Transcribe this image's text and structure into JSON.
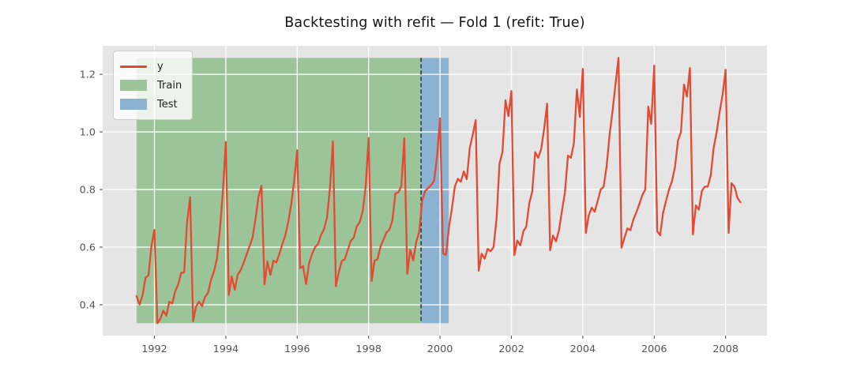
{
  "chart_data": {
    "type": "line",
    "title": "Backtesting with refit — Fold 1 (refit: True)",
    "xlabel": "",
    "ylabel": "",
    "grid": true,
    "plot_bg_color": "#E5E5E5",
    "grid_color": "#FFFFFF",
    "tick_label_color": "#555555",
    "xlim": [
      1990.551,
      2009.157
    ],
    "ylim": [
      0.293,
      1.299
    ],
    "x_ticks": [
      1992,
      1994,
      1996,
      1998,
      2000,
      2002,
      2004,
      2006,
      2008
    ],
    "y_ticks": [
      "0.4",
      "0.6",
      "0.8",
      "1.0",
      "1.2"
    ],
    "split_line": {
      "name": "train-test-split",
      "x": 1999.47,
      "color": "#333333",
      "style": "dashed"
    },
    "bands": [
      {
        "label": "Train",
        "x0": 1991.5,
        "x1": 1999.47,
        "y0": 0.336,
        "y1": 1.257,
        "color": "#9CC499"
      },
      {
        "label": "Test",
        "x0": 1999.47,
        "x1": 2000.245,
        "y0": 0.336,
        "y1": 1.257,
        "color": "#8CB2D1"
      }
    ],
    "legend": {
      "position": "upper left",
      "entries": [
        {
          "label": "y",
          "type": "line",
          "color": "#E24A33"
        },
        {
          "label": "Train",
          "type": "patch",
          "color": "#9CC499"
        },
        {
          "label": "Test",
          "type": "patch",
          "color": "#8CB2D1"
        }
      ]
    },
    "series": [
      {
        "name": "y",
        "color": "#E24A33",
        "line_width": 2.3,
        "freq": "monthly",
        "start_year": 1991,
        "start_month": 7,
        "values": [
          0.43,
          0.401,
          0.432,
          0.493,
          0.502,
          0.603,
          0.66,
          0.336,
          0.351,
          0.38,
          0.362,
          0.41,
          0.405,
          0.447,
          0.47,
          0.511,
          0.512,
          0.69,
          0.773,
          0.343,
          0.394,
          0.411,
          0.395,
          0.427,
          0.44,
          0.486,
          0.515,
          0.558,
          0.66,
          0.79,
          0.965,
          0.434,
          0.498,
          0.452,
          0.505,
          0.52,
          0.546,
          0.575,
          0.604,
          0.633,
          0.7,
          0.774,
          0.813,
          0.471,
          0.55,
          0.504,
          0.553,
          0.547,
          0.576,
          0.611,
          0.64,
          0.688,
          0.75,
          0.831,
          0.937,
          0.527,
          0.534,
          0.472,
          0.545,
          0.576,
          0.6,
          0.611,
          0.642,
          0.662,
          0.702,
          0.803,
          0.967,
          0.465,
          0.514,
          0.552,
          0.558,
          0.59,
          0.622,
          0.633,
          0.671,
          0.687,
          0.724,
          0.807,
          0.979,
          0.482,
          0.553,
          0.558,
          0.602,
          0.626,
          0.651,
          0.661,
          0.693,
          0.786,
          0.79,
          0.812,
          0.978,
          0.507,
          0.591,
          0.554,
          0.618,
          0.652,
          0.76,
          0.795,
          0.805,
          0.815,
          0.83,
          0.912,
          1.047,
          0.578,
          0.573,
          0.668,
          0.735,
          0.811,
          0.837,
          0.827,
          0.863,
          0.836,
          0.945,
          0.99,
          1.041,
          0.518,
          0.577,
          0.56,
          0.594,
          0.586,
          0.6,
          0.699,
          0.89,
          0.93,
          1.11,
          1.055,
          1.142,
          0.572,
          0.623,
          0.606,
          0.655,
          0.671,
          0.753,
          0.793,
          0.93,
          0.91,
          0.94,
          1.01,
          1.098,
          0.589,
          0.64,
          0.62,
          0.66,
          0.726,
          0.79,
          0.918,
          0.91,
          0.96,
          1.148,
          1.052,
          1.219,
          0.649,
          0.71,
          0.737,
          0.723,
          0.76,
          0.8,
          0.81,
          0.88,
          0.99,
          1.074,
          1.167,
          1.257,
          0.598,
          0.632,
          0.665,
          0.659,
          0.696,
          0.721,
          0.75,
          0.78,
          0.8,
          1.088,
          1.028,
          1.23,
          0.655,
          0.641,
          0.72,
          0.762,
          0.8,
          0.83,
          0.88,
          0.97,
          1.0,
          1.164,
          1.123,
          1.222,
          0.644,
          0.745,
          0.73,
          0.795,
          0.81,
          0.81,
          0.85,
          0.945,
          1.0,
          1.07,
          1.13,
          1.216,
          0.649,
          0.822,
          0.81,
          0.77,
          0.756
        ]
      }
    ]
  }
}
